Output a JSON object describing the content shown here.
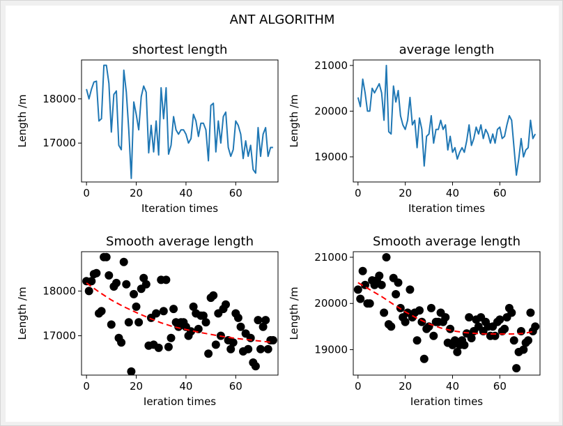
{
  "suptitle": "ANT ALGORITHM",
  "chart_data": [
    {
      "type": "line",
      "title": "shortest length",
      "xlabel": "Iteration times",
      "ylabel": "Length /m",
      "xlim": [
        -2,
        77
      ],
      "ylim": [
        16120,
        18880
      ],
      "xticks": [
        0,
        20,
        40,
        60
      ],
      "yticks": [
        17000,
        18000
      ],
      "yticklabels": [
        "17000",
        "18000"
      ],
      "color": "#1f77b4",
      "x": [
        0,
        1,
        2,
        3,
        4,
        5,
        6,
        7,
        8,
        9,
        10,
        11,
        12,
        13,
        14,
        15,
        16,
        17,
        18,
        19,
        20,
        21,
        22,
        23,
        24,
        25,
        26,
        27,
        28,
        29,
        30,
        31,
        32,
        33,
        34,
        35,
        36,
        37,
        38,
        39,
        40,
        41,
        42,
        43,
        44,
        45,
        46,
        47,
        48,
        49,
        50,
        51,
        52,
        53,
        54,
        55,
        56,
        57,
        58,
        59,
        60,
        61,
        62,
        63,
        64,
        65,
        66,
        67,
        68,
        69,
        70,
        71,
        72,
        73,
        74,
        75
      ],
      "y": [
        18220,
        18000,
        18220,
        18380,
        18400,
        17500,
        17550,
        18760,
        18760,
        18350,
        17250,
        18100,
        18180,
        16950,
        16850,
        18650,
        18150,
        17300,
        16200,
        17930,
        17650,
        17300,
        18050,
        18290,
        18150,
        16780,
        17400,
        16800,
        17500,
        16730,
        18250,
        17550,
        18250,
        16750,
        16950,
        17600,
        17300,
        17200,
        17300,
        17300,
        17200,
        17000,
        17100,
        17650,
        17500,
        17150,
        17450,
        17450,
        17300,
        16600,
        17850,
        17900,
        16800,
        17500,
        17000,
        17600,
        17700,
        16900,
        16700,
        16850,
        17500,
        17400,
        17200,
        16650,
        17050,
        16700,
        16950,
        16400,
        16320,
        17350,
        16700,
        17200,
        17350,
        16700,
        16900,
        16900
      ]
    },
    {
      "type": "line",
      "title": "average length",
      "xlabel": "Iteration times",
      "ylabel": "Length /m",
      "xlim": [
        -2,
        77
      ],
      "ylim": [
        18450,
        21120
      ],
      "xticks": [
        0,
        20,
        40,
        60
      ],
      "yticks": [
        19000,
        20000,
        21000
      ],
      "yticklabels": [
        "19000",
        "20000",
        "21000"
      ],
      "color": "#1f77b4",
      "x": [
        0,
        1,
        2,
        3,
        4,
        5,
        6,
        7,
        8,
        9,
        10,
        11,
        12,
        13,
        14,
        15,
        16,
        17,
        18,
        19,
        20,
        21,
        22,
        23,
        24,
        25,
        26,
        27,
        28,
        29,
        30,
        31,
        32,
        33,
        34,
        35,
        36,
        37,
        38,
        39,
        40,
        41,
        42,
        43,
        44,
        45,
        46,
        47,
        48,
        49,
        50,
        51,
        52,
        53,
        54,
        55,
        56,
        57,
        58,
        59,
        60,
        61,
        62,
        63,
        64,
        65,
        66,
        67,
        68,
        69,
        70,
        71,
        72,
        73,
        74,
        75
      ],
      "y": [
        20300,
        20100,
        20700,
        20400,
        20000,
        20000,
        20500,
        20400,
        20500,
        20600,
        20400,
        19800,
        21000,
        19550,
        19500,
        20550,
        20200,
        20450,
        19900,
        19700,
        19600,
        19800,
        20300,
        19700,
        19800,
        19200,
        19850,
        19600,
        18800,
        19450,
        19500,
        19900,
        19300,
        19600,
        19600,
        19800,
        19600,
        19700,
        19150,
        19450,
        19100,
        19200,
        18950,
        19100,
        19200,
        19100,
        19350,
        19700,
        19250,
        19400,
        19650,
        19500,
        19700,
        19400,
        19600,
        19500,
        19300,
        19500,
        19300,
        19600,
        19650,
        19400,
        19450,
        19700,
        19900,
        19800,
        19200,
        18600,
        18950,
        19400,
        19000,
        19150,
        19200,
        19800,
        19400,
        19500
      ]
    },
    {
      "type": "scatter",
      "title": "Smooth average length",
      "xlabel": "Ieration times",
      "ylabel": "Length /m",
      "xlim": [
        -2,
        77
      ],
      "ylim": [
        16120,
        18880
      ],
      "xticks": [
        0,
        20,
        40,
        60
      ],
      "yticks": [
        17000,
        18000
      ],
      "yticklabels": [
        "17000",
        "18000"
      ],
      "point_color": "#000000",
      "trend_color": "#ff0000",
      "x": [
        0,
        1,
        2,
        3,
        4,
        5,
        6,
        7,
        8,
        9,
        10,
        11,
        12,
        13,
        14,
        15,
        16,
        17,
        18,
        19,
        20,
        21,
        22,
        23,
        24,
        25,
        26,
        27,
        28,
        29,
        30,
        31,
        32,
        33,
        34,
        35,
        36,
        37,
        38,
        39,
        40,
        41,
        42,
        43,
        44,
        45,
        46,
        47,
        48,
        49,
        50,
        51,
        52,
        53,
        54,
        55,
        56,
        57,
        58,
        59,
        60,
        61,
        62,
        63,
        64,
        65,
        66,
        67,
        68,
        69,
        70,
        71,
        72,
        73,
        74,
        75
      ],
      "y": [
        18220,
        18000,
        18220,
        18380,
        18400,
        17500,
        17550,
        18760,
        18760,
        18350,
        17250,
        18100,
        18180,
        16950,
        16850,
        18650,
        18150,
        17300,
        16200,
        17930,
        17650,
        17300,
        18050,
        18290,
        18150,
        16780,
        17400,
        16800,
        17500,
        16730,
        18250,
        17550,
        18250,
        16750,
        16950,
        17600,
        17300,
        17200,
        17300,
        17300,
        17200,
        17000,
        17100,
        17650,
        17500,
        17150,
        17450,
        17450,
        17300,
        16600,
        17850,
        17900,
        16800,
        17500,
        17000,
        17600,
        17700,
        16900,
        16700,
        16850,
        17500,
        17400,
        17200,
        16650,
        17050,
        16700,
        16950,
        16400,
        16320,
        17350,
        16700,
        17200,
        17350,
        16700,
        16900,
        16900
      ],
      "trend_x": [
        0,
        5,
        10,
        15,
        20,
        25,
        30,
        35,
        40,
        45,
        50,
        55,
        60,
        65,
        70,
        75
      ],
      "trend_y": [
        18180,
        17980,
        17800,
        17650,
        17520,
        17400,
        17290,
        17200,
        17140,
        17080,
        17030,
        16980,
        16940,
        16910,
        16880,
        16850
      ]
    },
    {
      "type": "scatter",
      "title": "Smooth average length",
      "xlabel": "Ieration times",
      "ylabel": "Length /m",
      "xlim": [
        -2,
        77
      ],
      "ylim": [
        18450,
        21120
      ],
      "xticks": [
        0,
        20,
        40,
        60
      ],
      "yticks": [
        19000,
        20000,
        21000
      ],
      "yticklabels": [
        "19000",
        "20000",
        "21000"
      ],
      "point_color": "#000000",
      "trend_color": "#ff0000",
      "x": [
        0,
        1,
        2,
        3,
        4,
        5,
        6,
        7,
        8,
        9,
        10,
        11,
        12,
        13,
        14,
        15,
        16,
        17,
        18,
        19,
        20,
        21,
        22,
        23,
        24,
        25,
        26,
        27,
        28,
        29,
        30,
        31,
        32,
        33,
        34,
        35,
        36,
        37,
        38,
        39,
        40,
        41,
        42,
        43,
        44,
        45,
        46,
        47,
        48,
        49,
        50,
        51,
        52,
        53,
        54,
        55,
        56,
        57,
        58,
        59,
        60,
        61,
        62,
        63,
        64,
        65,
        66,
        67,
        68,
        69,
        70,
        71,
        72,
        73,
        74,
        75
      ],
      "y": [
        20300,
        20100,
        20700,
        20400,
        20000,
        20000,
        20500,
        20400,
        20500,
        20600,
        20400,
        19800,
        21000,
        19550,
        19500,
        20550,
        20200,
        20450,
        19900,
        19700,
        19600,
        19800,
        20300,
        19700,
        19800,
        19200,
        19850,
        19600,
        18800,
        19450,
        19500,
        19900,
        19300,
        19600,
        19600,
        19800,
        19600,
        19700,
        19150,
        19450,
        19100,
        19200,
        18950,
        19100,
        19200,
        19100,
        19350,
        19700,
        19250,
        19400,
        19650,
        19500,
        19700,
        19400,
        19600,
        19500,
        19300,
        19500,
        19300,
        19600,
        19650,
        19400,
        19450,
        19700,
        19900,
        19800,
        19200,
        18600,
        18950,
        19400,
        19000,
        19150,
        19200,
        19800,
        19400,
        19500
      ],
      "trend_x": [
        0,
        5,
        10,
        15,
        20,
        25,
        30,
        35,
        40,
        45,
        50,
        55,
        60,
        65,
        70,
        75
      ],
      "trend_y": [
        20450,
        20300,
        20150,
        19980,
        19820,
        19680,
        19560,
        19470,
        19410,
        19370,
        19350,
        19340,
        19340,
        19340,
        19350,
        19400
      ]
    }
  ]
}
